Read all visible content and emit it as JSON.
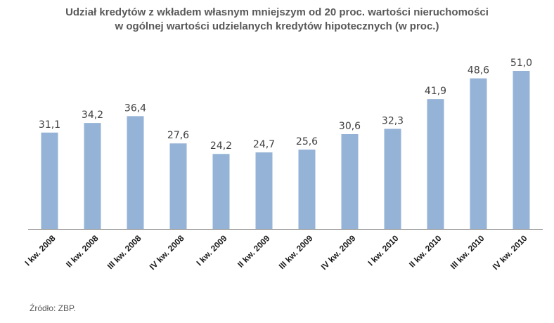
{
  "chart_data": {
    "type": "bar",
    "title_line1": "Udział kredytów z wkładem własnym mniejszym od 20 proc. wartości nieruchomości",
    "title_line2": "w ogólnej wartości udzielanych kredytów hipotecznych (w proc.)",
    "categories": [
      "I kw. 2008",
      "II kw. 2008",
      "III kw. 2008",
      "IV kw. 2008",
      "I kw. 2009",
      "II kw. 2009",
      "III kw. 2009",
      "IV kw. 2009",
      "I kw. 2010",
      "II kw. 2010",
      "III kw. 2010",
      "IV kw. 2010"
    ],
    "values": [
      31.1,
      34.2,
      36.4,
      27.6,
      24.2,
      24.7,
      25.6,
      30.6,
      32.3,
      41.9,
      48.6,
      51.0
    ],
    "value_labels": [
      "31,1",
      "34,2",
      "36,4",
      "27,6",
      "24,2",
      "24,7",
      "25,6",
      "30,6",
      "32,3",
      "41,9",
      "48,6",
      "51,0"
    ],
    "ylim": [
      0,
      51
    ],
    "grid": false,
    "legend": "none",
    "bar_color": "#95b3d7",
    "axis_color": "#7f7f7f"
  },
  "source": "Źródło: ZBP."
}
